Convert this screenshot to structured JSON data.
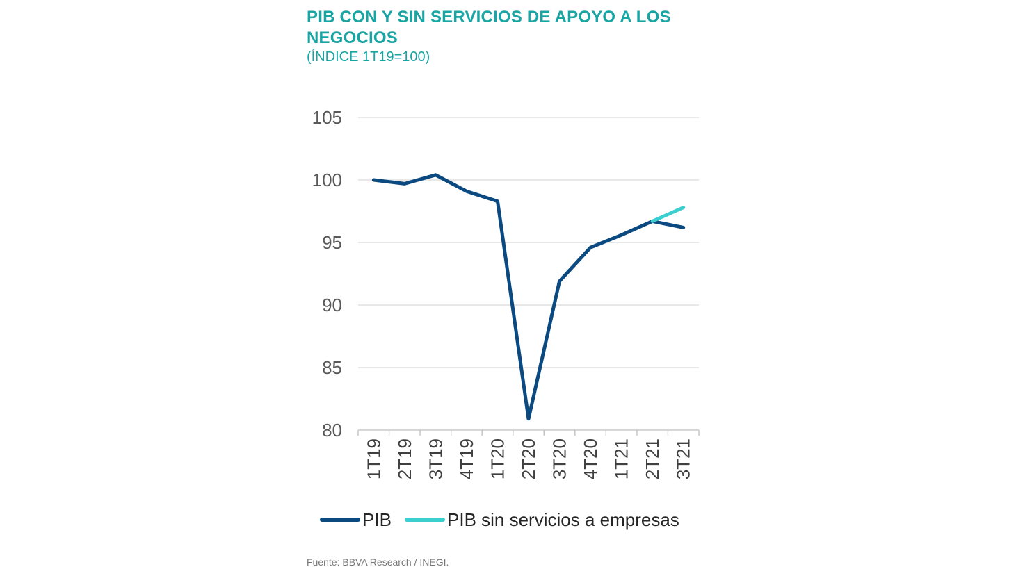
{
  "chart_data": {
    "type": "line",
    "title": "PIB CON Y SIN SERVICIOS DE APOYO A LOS NEGOCIOS",
    "subtitle": "(ÍNDICE 1T19=100)",
    "categories": [
      "1T19",
      "2T19",
      "3T19",
      "4T19",
      "1T20",
      "2T20",
      "3T20",
      "4T20",
      "1T21",
      "2T21",
      "3T21"
    ],
    "series": [
      {
        "name": "PIB",
        "color": "#0b4a80",
        "values": [
          100.0,
          99.7,
          100.4,
          99.1,
          98.3,
          80.9,
          91.9,
          94.6,
          95.6,
          96.7,
          96.2
        ]
      },
      {
        "name": "PIB sin servicios a empresas",
        "color": "#3ccfcf",
        "values": [
          null,
          null,
          null,
          null,
          null,
          null,
          null,
          null,
          null,
          96.7,
          97.8
        ]
      }
    ],
    "ylim": [
      80,
      105
    ],
    "yticks": [
      "80",
      "85",
      "90",
      "95",
      "100",
      "105"
    ],
    "grid": true,
    "legend_position": "bottom",
    "source": "Fuente: BBVA Research / INEGI."
  }
}
